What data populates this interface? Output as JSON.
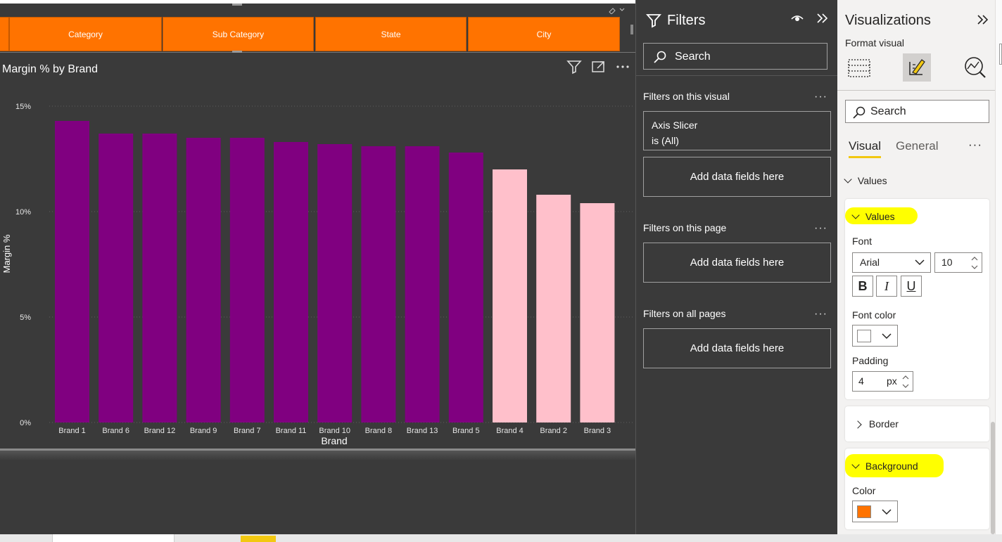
{
  "slicer": {
    "buttons": [
      "Category",
      "Sub Category",
      "State",
      "City"
    ]
  },
  "chart": {
    "title": "Margin % by Brand"
  },
  "chart_data": {
    "type": "bar",
    "title": "Margin % by Brand",
    "xlabel": "Brand",
    "ylabel": "Margin %",
    "categories": [
      "Brand 1",
      "Brand 6",
      "Brand 12",
      "Brand 9",
      "Brand 7",
      "Brand 11",
      "Brand 10",
      "Brand 8",
      "Brand 13",
      "Brand 5",
      "Brand 4",
      "Brand 2",
      "Brand 3"
    ],
    "values": [
      14.3,
      13.7,
      13.7,
      13.5,
      13.5,
      13.3,
      13.2,
      13.1,
      13.1,
      12.8,
      12.0,
      10.8,
      10.4
    ],
    "bar_colors": [
      "#800080",
      "#800080",
      "#800080",
      "#800080",
      "#800080",
      "#800080",
      "#800080",
      "#800080",
      "#800080",
      "#800080",
      "#ffc0cb",
      "#ffc0cb",
      "#ffc0cb"
    ],
    "yticks": [
      "0%",
      "5%",
      "10%",
      "15%"
    ],
    "ylim": [
      0,
      15
    ],
    "grid": true,
    "background": "#3a3a3a"
  },
  "filters": {
    "title": "Filters",
    "search_placeholder": "Search",
    "on_visual_label": "Filters on this visual",
    "axis_slicer_name": "Axis Slicer",
    "axis_slicer_state": "is (All)",
    "add_fields_label": "Add data fields here",
    "on_page_label": "Filters on this page",
    "on_all_label": "Filters on all pages",
    "dots": "···"
  },
  "viz": {
    "title": "Visualizations",
    "subtitle": "Format visual",
    "search_placeholder": "Search",
    "tab_visual": "Visual",
    "tab_general": "General",
    "dots": "···",
    "values_section": "Values",
    "values_card_title": "Values",
    "font_label": "Font",
    "font_family_value": "Arial",
    "font_size_value": "10",
    "bold_glyph": "B",
    "italic_glyph": "I",
    "underline_glyph": "U",
    "font_color_label": "Font color",
    "font_color": "#ffffff",
    "padding_label": "Padding",
    "padding_value": "4",
    "padding_unit": "px",
    "border_label": "Border",
    "background_label": "Background",
    "color_label": "Color",
    "background_color": "#ff7300"
  },
  "colors": {
    "accent": "#f2c811",
    "slicer_orange": "#ff7300",
    "highlight": "#ffff00"
  }
}
